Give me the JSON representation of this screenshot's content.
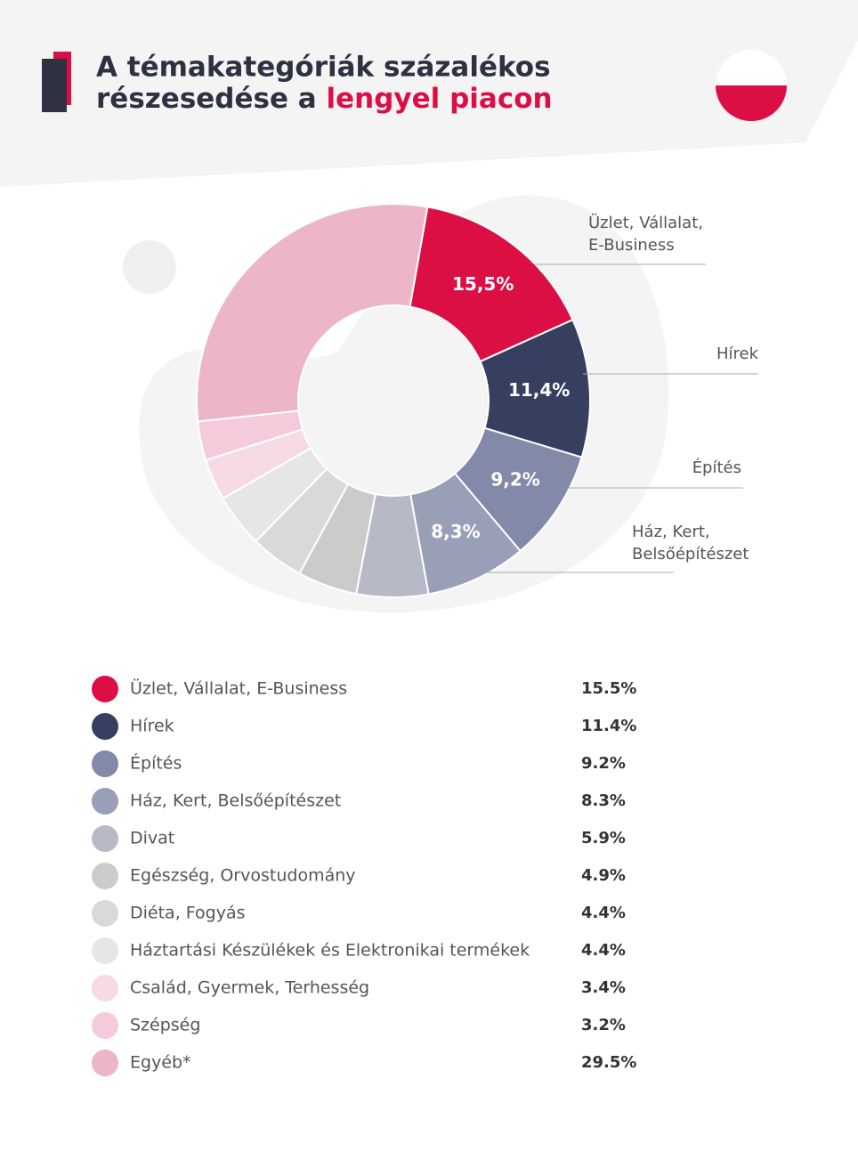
{
  "chart_data": {
    "type": "donut",
    "title": [
      "A témakategóriák százalékos",
      "részesedése a",
      "lengyel piacon"
    ],
    "categories": [
      "Üzlet, Vállalat, E-Business",
      "Hírek",
      "Építés",
      "Ház, Kert, Belsőépítészet",
      "Divat",
      "Egészség, Orvostudomány",
      "Diéta, Fogyás",
      "Háztartási Készülékek és Elektronikai termékek",
      "Család, Gyermek, Terhesség",
      "Szépség",
      "Egyéb*"
    ],
    "values": [
      15.5,
      11.4,
      9.2,
      8.3,
      5.9,
      4.9,
      4.4,
      4.4,
      3.4,
      3.2,
      29.5
    ],
    "value_labels": [
      "15.5%",
      "11.4%",
      "9.2%",
      "8.3%",
      "5.9%",
      "4.9%",
      "4.4%",
      "4.4%",
      "3.4%",
      "3.2%",
      "29.5%"
    ],
    "donut_labels": [
      "15,5%",
      "11,4%",
      "9,2%",
      "8,3%",
      null,
      null,
      null,
      null,
      null,
      null,
      null
    ],
    "colors": [
      "#dc0f45",
      "#363f5f",
      "#8389a8",
      "#9a9fb8",
      "#b7bac6",
      "#cbcbcb",
      "#d9d9d9",
      "#e6e6e6",
      "#f6dbe4",
      "#f5cada",
      "#edb5c8"
    ]
  }
}
